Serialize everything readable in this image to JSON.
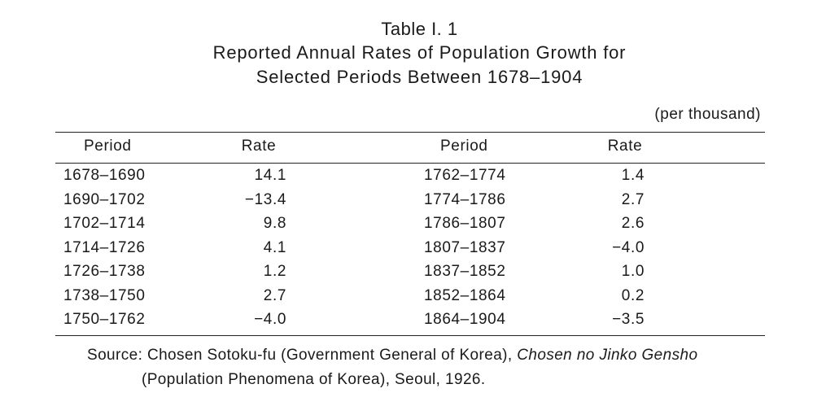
{
  "header": {
    "table_label": "Table I. 1",
    "title_line1": "Reported Annual Rates of Population Growth for",
    "title_line2": "Selected Periods Between 1678–1904",
    "unit_note": "(per thousand)"
  },
  "columns": {
    "period_left": "Period",
    "rate_left": "Rate",
    "period_right": "Period",
    "rate_right": "Rate"
  },
  "rows": [
    {
      "period_left": "1678–1690",
      "rate_left": "14.1",
      "period_right": "1762–1774",
      "rate_right": "1.4"
    },
    {
      "period_left": "1690–1702",
      "rate_left": "−13.4",
      "period_right": "1774–1786",
      "rate_right": "2.7"
    },
    {
      "period_left": "1702–1714",
      "rate_left": "9.8",
      "period_right": "1786–1807",
      "rate_right": "2.6"
    },
    {
      "period_left": "1714–1726",
      "rate_left": "4.1",
      "period_right": "1807–1837",
      "rate_right": "−4.0"
    },
    {
      "period_left": "1726–1738",
      "rate_left": "1.2",
      "period_right": "1837–1852",
      "rate_right": "1.0"
    },
    {
      "period_left": "1738–1750",
      "rate_left": "2.7",
      "period_right": "1852–1864",
      "rate_right": "0.2"
    },
    {
      "period_left": "1750–1762",
      "rate_left": "−4.0",
      "period_right": "1864–1904",
      "rate_right": "−3.5"
    }
  ],
  "source": {
    "prefix": "Source: Chosen Sotoku-fu (Government General of Korea), ",
    "italic_title": "Chosen no Jinko Gensho",
    "line2": "(Population Phenomena of Korea), Seoul, 1926."
  }
}
